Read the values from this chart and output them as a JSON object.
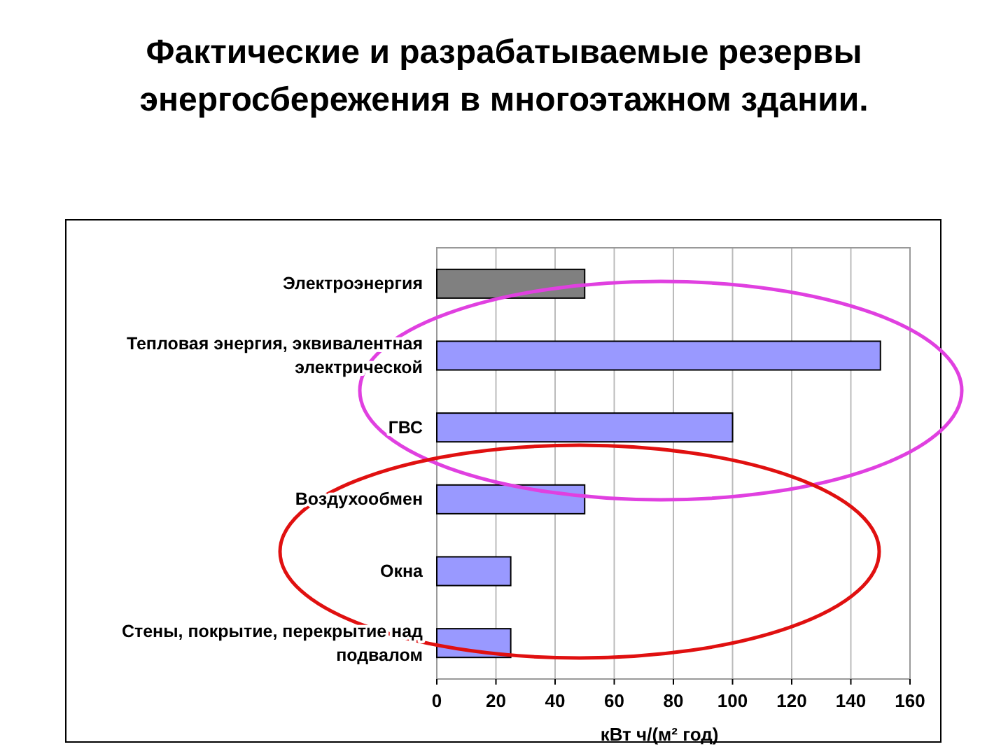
{
  "chart_data": {
    "type": "bar",
    "orientation": "horizontal",
    "title": "Фактические и разрабатываемые резервы энергосбережения в многоэтажном здании.",
    "xlabel": "кВт ч/(м² год)",
    "categories": [
      "Электроэнергия",
      "Тепловая энергия, эквивалентная электрической",
      "ГВС",
      "Воздухообмен",
      "Окна",
      "Стены, покрытие, перекрытие над подвалом"
    ],
    "values": [
      50,
      150,
      100,
      50,
      25,
      25
    ],
    "colors": [
      "#808080",
      "#9999ff",
      "#9999ff",
      "#9999ff",
      "#9999ff",
      "#9999ff"
    ],
    "xlim": [
      0,
      160
    ],
    "xticks": [
      0,
      20,
      40,
      60,
      80,
      100,
      120,
      140,
      160
    ],
    "grid": "x"
  }
}
